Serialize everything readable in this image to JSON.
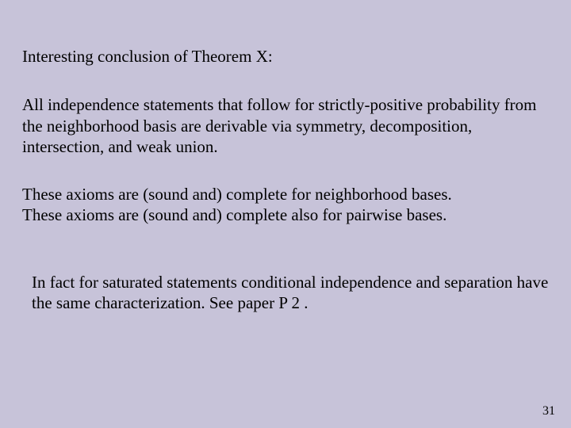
{
  "slide": {
    "heading": "Interesting conclusion of Theorem X:",
    "para1": "All independence statements that follow for strictly-positive probability from the neighborhood basis are derivable via symmetry, decomposition, intersection, and weak union.",
    "para2_line1": "These axioms are (sound and) complete for neighborhood bases.",
    "para2_line2": "These axioms are (sound and) complete also for pairwise bases.",
    "para3": "In fact for saturated statements conditional independence and separation have the same characterization. See paper P 2 .",
    "page_number": "31",
    "background_color": "#c7c3d9",
    "text_color": "#000000",
    "font_family": "Georgia, 'Times New Roman', Times, serif",
    "base_fontsize": 21
  }
}
